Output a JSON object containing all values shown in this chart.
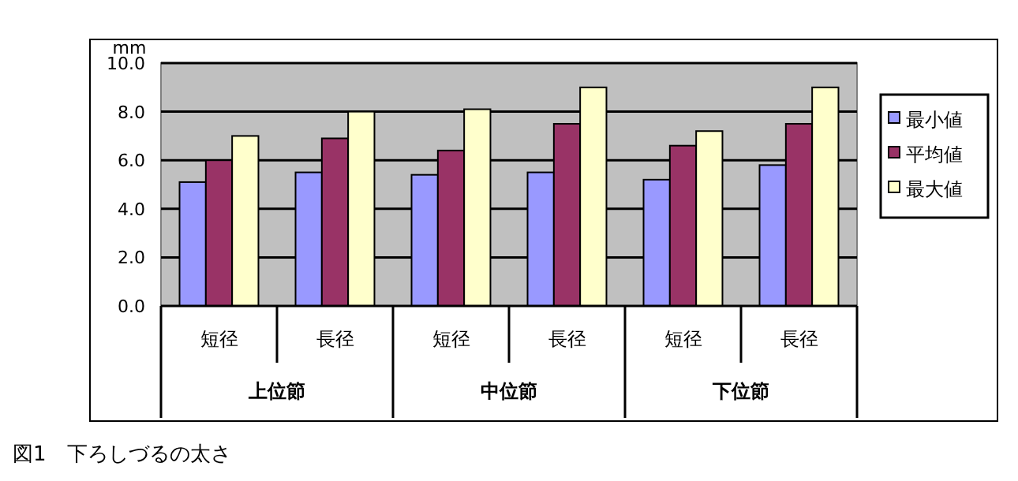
{
  "chart_data": {
    "type": "bar",
    "ylabel": "mm",
    "categories": [
      "短径",
      "長径",
      "短径",
      "長径",
      "短径",
      "長径"
    ],
    "series": [
      {
        "name": "最小値",
        "color": "#9999ff",
        "values": [
          5.1,
          5.5,
          5.4,
          5.5,
          5.2,
          5.8
        ]
      },
      {
        "name": "平均値",
        "color": "#993366",
        "values": [
          6.0,
          6.9,
          6.4,
          7.5,
          6.6,
          7.5
        ]
      },
      {
        "name": "最大値",
        "color": "#ffffcc",
        "values": [
          7.0,
          8.0,
          8.1,
          9.0,
          7.2,
          9.0
        ]
      }
    ],
    "ylim": [
      0,
      10
    ],
    "yticks": [
      {
        "value": 0,
        "label": "0.0"
      },
      {
        "value": 2,
        "label": "2.0"
      },
      {
        "value": 4,
        "label": "4.0"
      },
      {
        "value": 6,
        "label": "6.0"
      },
      {
        "value": 8,
        "label": "8.0"
      },
      {
        "value": 10,
        "label": "10.0"
      }
    ],
    "grid": "y",
    "legend": "right",
    "annotations": [
      "上位節",
      "中位節",
      "下位節",
      "図1　下ろしづるの太さ"
    ]
  }
}
